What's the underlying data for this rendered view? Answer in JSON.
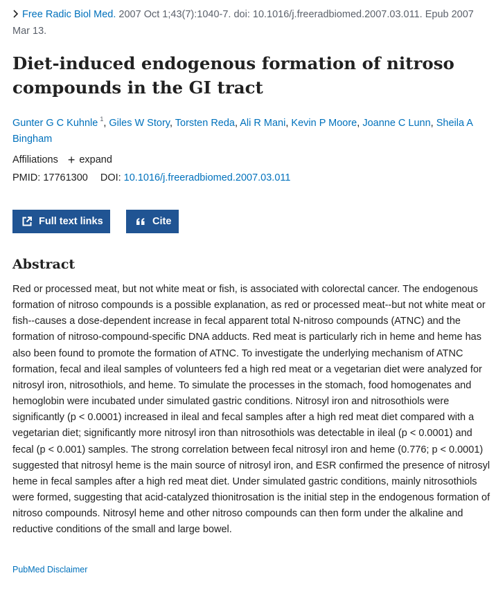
{
  "citation": {
    "journal": "Free Radic Biol Med.",
    "details": "2007 Oct 1;43(7):1040-7. doi: 10.1016/j.freeradbiomed.2007.03.011. Epub 2007 Mar 13."
  },
  "title": "Diet-induced endogenous formation of nitroso compounds in the GI tract",
  "authors": [
    {
      "name": "Gunter G C Kuhnle",
      "sup": "1"
    },
    {
      "name": "Giles W Story",
      "sup": ""
    },
    {
      "name": "Torsten Reda",
      "sup": ""
    },
    {
      "name": "Ali R Mani",
      "sup": ""
    },
    {
      "name": "Kevin P Moore",
      "sup": ""
    },
    {
      "name": "Joanne C Lunn",
      "sup": ""
    },
    {
      "name": "Sheila A Bingham",
      "sup": ""
    }
  ],
  "affiliations": {
    "label": "Affiliations",
    "expand_label": "expand"
  },
  "ids": {
    "pmid_label": "PMID:",
    "pmid": "17761300",
    "doi_label": "DOI:",
    "doi": "10.1016/j.freeradbiomed.2007.03.011"
  },
  "buttons": {
    "full_text": "Full text links",
    "cite": "Cite"
  },
  "abstract": {
    "heading": "Abstract",
    "text": "Red or processed meat, but not white meat or fish, is associated with colorectal cancer. The endogenous formation of nitroso compounds is a possible explanation, as red or processed meat--but not white meat or fish--causes a dose-dependent increase in fecal apparent total N-nitroso compounds (ATNC) and the formation of nitroso-compound-specific DNA adducts. Red meat is particularly rich in heme and heme has also been found to promote the formation of ATNC. To investigate the underlying mechanism of ATNC formation, fecal and ileal samples of volunteers fed a high red meat or a vegetarian diet were analyzed for nitrosyl iron, nitrosothiols, and heme. To simulate the processes in the stomach, food homogenates and hemoglobin were incubated under simulated gastric conditions. Nitrosyl iron and nitrosothiols were significantly (p < 0.0001) increased in ileal and fecal samples after a high red meat diet compared with a vegetarian diet; significantly more nitrosyl iron than nitrosothiols was detectable in ileal (p < 0.0001) and fecal (p < 0.001) samples. The strong correlation between fecal nitrosyl iron and heme (0.776; p < 0.0001) suggested that nitrosyl heme is the main source of nitrosyl iron, and ESR confirmed the presence of nitrosyl heme in fecal samples after a high red meat diet. Under simulated gastric conditions, mainly nitrosothiols were formed, suggesting that acid-catalyzed thionitrosation is the initial step in the endogenous formation of nitroso compounds. Nitrosyl heme and other nitroso compounds can then form under the alkaline and reductive conditions of the small and large bowel."
  },
  "disclaimer": "PubMed Disclaimer",
  "colors": {
    "link": "#0071bc",
    "button": "#205493",
    "muted": "#5b616b"
  }
}
